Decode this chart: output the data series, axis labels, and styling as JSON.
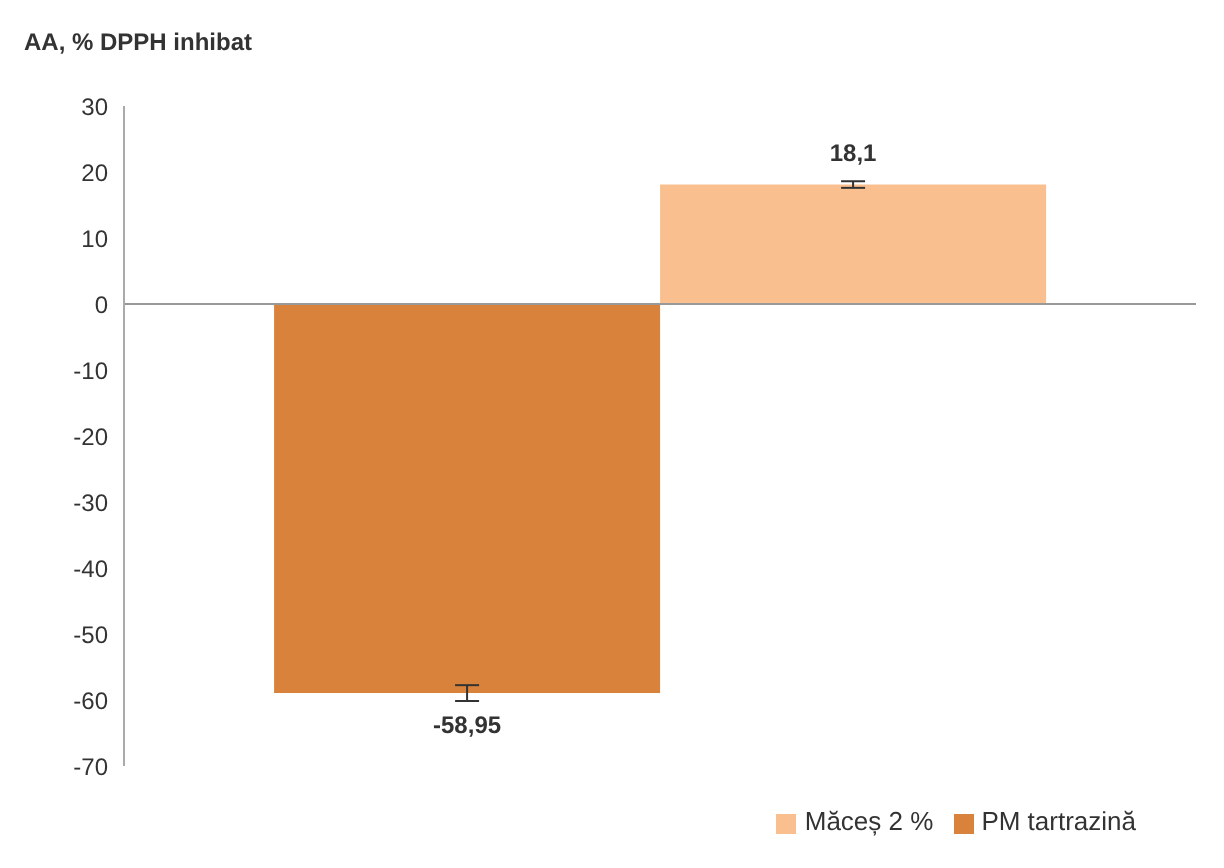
{
  "chart_data": {
    "type": "bar",
    "ylabel": "AA, % DPPH inhibat",
    "categories": [
      null
    ],
    "series": [
      {
        "name": "PM tartrazină",
        "color": "#d9823b",
        "values": [
          -58.95
        ],
        "errors": [
          1.2
        ],
        "value_labels": [
          "-58,95"
        ]
      },
      {
        "name": "Măceș 2 %",
        "color": "#f9bf8f",
        "values": [
          18.1
        ],
        "errors": [
          0.5
        ],
        "value_labels": [
          "18,1"
        ]
      }
    ],
    "ylim": [
      -70,
      30
    ],
    "yticks": [
      -70,
      -60,
      -50,
      -40,
      -30,
      -20,
      -10,
      0,
      10,
      20,
      30
    ],
    "ref_lines": [
      {
        "axis": "y",
        "value": 0,
        "color": "#999999"
      }
    ],
    "legend": "bottom right"
  }
}
